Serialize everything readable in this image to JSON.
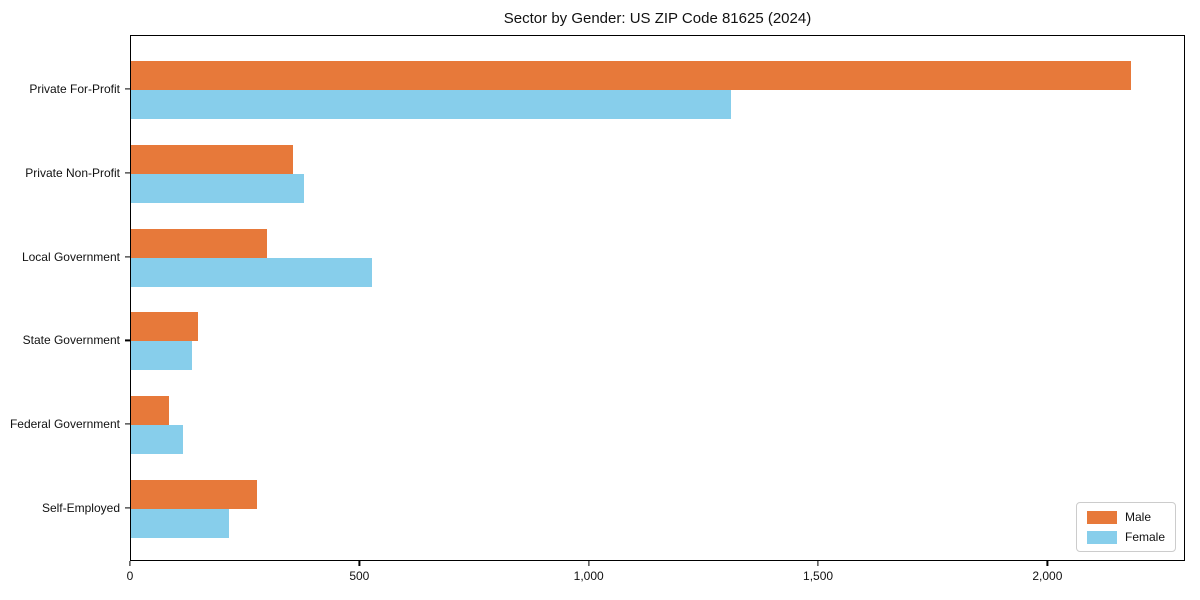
{
  "figure": {
    "background": "#ffffff"
  },
  "chart_data": {
    "type": "bar",
    "orientation": "horizontal",
    "title": "Sector by Gender: US ZIP Code 81625 (2024)",
    "categories": [
      "Private For-Profit",
      "Private Non-Profit",
      "Local Government",
      "State Government",
      "Federal Government",
      "Self-Employed"
    ],
    "series": [
      {
        "name": "Male",
        "color": "#e7793a",
        "values": [
          2185,
          354,
          297,
          146,
          83,
          276
        ]
      },
      {
        "name": "Female",
        "color": "#87ceeb",
        "values": [
          1310,
          378,
          527,
          133,
          113,
          213
        ]
      }
    ],
    "xlabel": "",
    "ylabel": "",
    "xlim": [
      0,
      2300
    ],
    "xticks": [
      0,
      500,
      1000,
      1500,
      2000
    ],
    "xtick_labels": [
      "0",
      "500",
      "1,000",
      "1,500",
      "2,000"
    ],
    "grid": false,
    "legend": {
      "position": "lower right"
    },
    "axis_color": "#000000"
  }
}
